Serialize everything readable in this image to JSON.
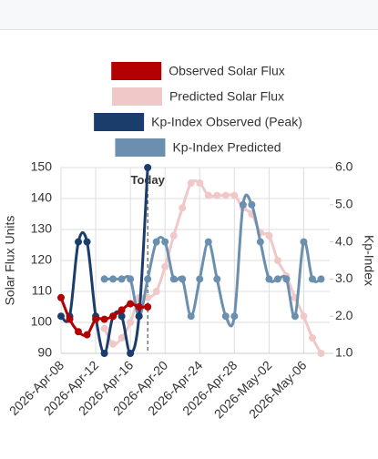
{
  "chart_data": {
    "type": "line",
    "yaxis_label": "Solar Flux Units",
    "y2axis_label": "Kp-Index",
    "xlim": [
      "2026-Apr-08",
      "2026-May-09"
    ],
    "xticks": [
      "2026-Apr-08",
      "2026-Apr-12",
      "2026-Apr-16",
      "2026-Apr-20",
      "2026-Apr-24",
      "2026-Apr-28",
      "2026-May-02",
      "2026-May-06"
    ],
    "ylim": [
      90,
      150
    ],
    "yticks": [
      90,
      100,
      110,
      120,
      130,
      140,
      150
    ],
    "y2lim": [
      1,
      6
    ],
    "y2ticks": [
      {
        "value": 1,
        "label": "1.0"
      },
      {
        "value": 2,
        "label": "2.0"
      },
      {
        "value": 3,
        "label": "3.0"
      },
      {
        "value": 4,
        "label": "4.0"
      },
      {
        "value": 5,
        "label": "5.0"
      },
      {
        "value": 6,
        "label": "6.0"
      }
    ],
    "grid": true,
    "annotation": {
      "text": "Today",
      "x": "2026-Apr-18"
    },
    "series": [
      {
        "name": "Observed Solar Flux",
        "color": "#b30000",
        "axis": "y",
        "x": [
          "2026-Apr-08",
          "2026-Apr-09",
          "2026-Apr-10",
          "2026-Apr-11",
          "2026-Apr-12",
          "2026-Apr-13",
          "2026-Apr-14",
          "2026-Apr-15",
          "2026-Apr-16",
          "2026-Apr-17",
          "2026-Apr-18"
        ],
        "values": [
          108,
          101,
          97,
          96,
          101,
          101,
          102,
          104,
          106,
          105,
          105
        ]
      },
      {
        "name": "Predicted Solar Flux",
        "color": "#f0c8c8",
        "axis": "y",
        "x": [
          "2026-Apr-13",
          "2026-Apr-14",
          "2026-Apr-15",
          "2026-Apr-16",
          "2026-Apr-17",
          "2026-Apr-18",
          "2026-Apr-19",
          "2026-Apr-20",
          "2026-Apr-21",
          "2026-Apr-22",
          "2026-Apr-23",
          "2026-Apr-24",
          "2026-Apr-25",
          "2026-Apr-26",
          "2026-Apr-27",
          "2026-Apr-28",
          "2026-Apr-29",
          "2026-Apr-30",
          "2026-May-01",
          "2026-May-02",
          "2026-May-03",
          "2026-May-04",
          "2026-May-05",
          "2026-May-06",
          "2026-May-07",
          "2026-May-08"
        ],
        "values": [
          98,
          93,
          95,
          100,
          108,
          108,
          110,
          118,
          128,
          137,
          145,
          145,
          141,
          141,
          141,
          141,
          137,
          135,
          129,
          128,
          120,
          115,
          108,
          102,
          95,
          90
        ]
      },
      {
        "name": "Kp-Index Observed (Peak)",
        "color": "#1a3d6b",
        "axis": "y2",
        "x": [
          "2026-Apr-08",
          "2026-Apr-09",
          "2026-Apr-10",
          "2026-Apr-11",
          "2026-Apr-12",
          "2026-Apr-13",
          "2026-Apr-14",
          "2026-Apr-15",
          "2026-Apr-16",
          "2026-Apr-17",
          "2026-Apr-18"
        ],
        "values": [
          2,
          2,
          4,
          4,
          2,
          1,
          2,
          2,
          1,
          2,
          6
        ]
      },
      {
        "name": "Kp-Index Predicted",
        "color": "#6b8fae",
        "axis": "y2",
        "x": [
          "2026-Apr-13",
          "2026-Apr-14",
          "2026-Apr-15",
          "2026-Apr-16",
          "2026-Apr-17",
          "2026-Apr-18",
          "2026-Apr-19",
          "2026-Apr-20",
          "2026-Apr-21",
          "2026-Apr-22",
          "2026-Apr-23",
          "2026-Apr-24",
          "2026-Apr-25",
          "2026-Apr-26",
          "2026-Apr-27",
          "2026-Apr-28",
          "2026-Apr-29",
          "2026-Apr-30",
          "2026-May-01",
          "2026-May-02",
          "2026-May-03",
          "2026-May-04",
          "2026-May-05",
          "2026-May-06",
          "2026-May-07",
          "2026-May-08"
        ],
        "values": [
          3,
          3,
          3,
          3,
          2,
          3,
          4,
          4,
          3,
          3,
          2,
          3,
          4,
          3,
          2,
          2,
          5,
          5,
          4,
          3,
          3,
          3,
          2,
          4,
          3,
          3
        ]
      }
    ]
  }
}
